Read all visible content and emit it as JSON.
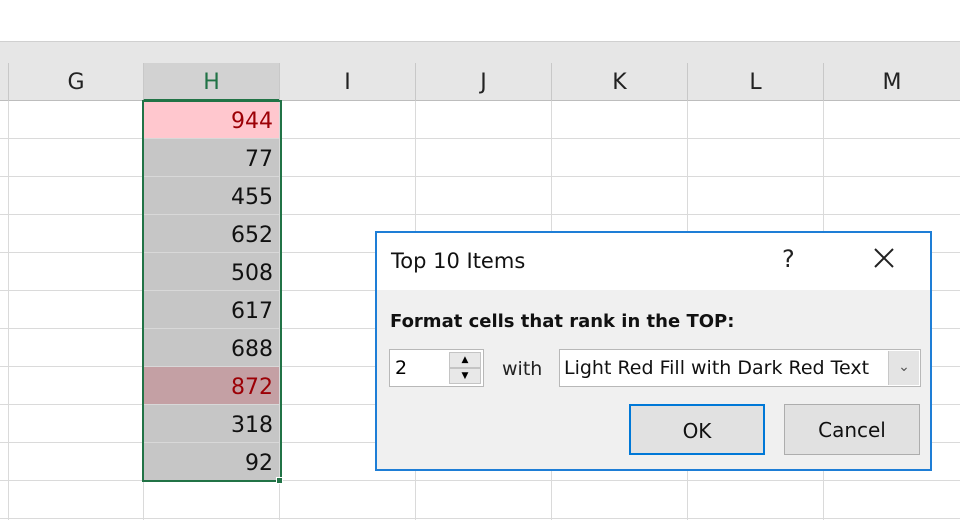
{
  "columns": [
    "G",
    "H",
    "I",
    "J",
    "K",
    "L",
    "M"
  ],
  "selected_column": "H",
  "cells": [
    {
      "value": "944",
      "format": "highlight"
    },
    {
      "value": "77",
      "format": "none"
    },
    {
      "value": "455",
      "format": "none"
    },
    {
      "value": "652",
      "format": "none"
    },
    {
      "value": "508",
      "format": "none"
    },
    {
      "value": "617",
      "format": "none"
    },
    {
      "value": "688",
      "format": "none"
    },
    {
      "value": "872",
      "format": "highlight"
    },
    {
      "value": "318",
      "format": "none"
    },
    {
      "value": "92",
      "format": "none"
    }
  ],
  "colors": {
    "accent": "#217346",
    "highlight_fill": "#ffc7ce",
    "highlight_text": "#9c0006",
    "dialog_border": "#1e7ed6"
  },
  "dialog": {
    "title": "Top 10 Items",
    "help_label": "?",
    "label": "Format cells that rank in the TOP:",
    "rank_value": "2",
    "with_label": "with",
    "format_value": "Light Red Fill with Dark Red Text",
    "ok_label": "OK",
    "cancel_label": "Cancel"
  }
}
